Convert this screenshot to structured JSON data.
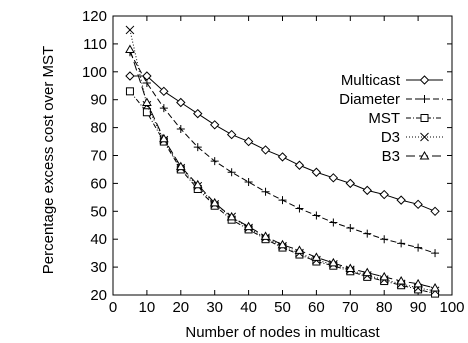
{
  "chart_data": {
    "type": "line",
    "title": "",
    "xlabel": "Number of nodes in multicast",
    "ylabel": "Percentage excess cost over MST",
    "xlim": [
      0,
      100
    ],
    "ylim": [
      20,
      120
    ],
    "xticks": [
      0,
      10,
      20,
      30,
      40,
      50,
      60,
      70,
      80,
      90,
      100
    ],
    "yticks": [
      20,
      30,
      40,
      50,
      60,
      70,
      80,
      90,
      100,
      110,
      120
    ],
    "grid": false,
    "legend_position": "top-right",
    "x": [
      5,
      10,
      15,
      20,
      25,
      30,
      35,
      40,
      45,
      50,
      55,
      60,
      65,
      70,
      75,
      80,
      85,
      90,
      95
    ],
    "series": [
      {
        "name": "Multicast",
        "marker": "diamond",
        "line": "solid",
        "values": [
          98.5,
          98.5,
          93,
          89,
          85,
          81,
          77.5,
          75,
          72,
          69.5,
          66.5,
          64,
          62,
          60,
          57.5,
          56,
          54,
          52.5,
          50
        ]
      },
      {
        "name": "Diameter",
        "marker": "plus",
        "line": "dashed",
        "values": [
          107,
          96,
          87,
          79.5,
          73,
          68,
          64,
          60.5,
          57,
          54,
          51,
          48.5,
          46,
          44,
          42,
          40,
          38.5,
          37,
          35
        ]
      },
      {
        "name": "MST",
        "marker": "square",
        "line": "dash-dot",
        "values": [
          93,
          85.5,
          75,
          65,
          58,
          52,
          47,
          43.5,
          40,
          37,
          34.5,
          32,
          30.5,
          28.5,
          26.5,
          25,
          23.5,
          22,
          20.5
        ]
      },
      {
        "name": "D3",
        "marker": "cross",
        "line": "dotted",
        "values": [
          115,
          88,
          75.5,
          65.5,
          59,
          52.5,
          48,
          44,
          40.5,
          37.5,
          35,
          32.5,
          31,
          29,
          27,
          25.5,
          24,
          22.5,
          21.5
        ]
      },
      {
        "name": "B3",
        "marker": "triangle",
        "line": "long-dash",
        "values": [
          108,
          89,
          76,
          66,
          59.5,
          53,
          48,
          44.5,
          41,
          38,
          36,
          33.5,
          31.5,
          29.5,
          28,
          26.5,
          25,
          24,
          22.5
        ]
      }
    ]
  }
}
